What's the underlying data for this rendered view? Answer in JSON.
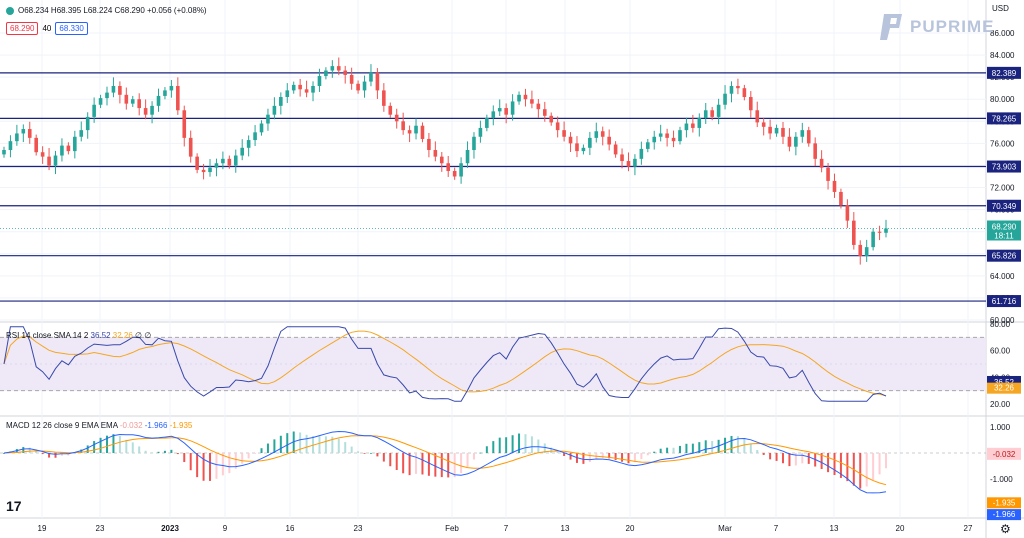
{
  "header": {
    "ohlc_text": "O68.234 H68.395 L68.224 C68.290 +0.056 (+0.08%)",
    "sell_price": "68.290",
    "spread": "40",
    "buy_price": "68.330",
    "currency": "USD"
  },
  "brand": {
    "name": "PUPRIME"
  },
  "chart_data": {
    "type": "candlestick",
    "price_axis": {
      "min": 60,
      "max": 86,
      "ticks": [
        60,
        62,
        64,
        66,
        68,
        70,
        72,
        74,
        76,
        78,
        80,
        82,
        84,
        86
      ],
      "tick_labels": [
        "60.000",
        "62.000",
        "64.000",
        "66.000",
        "68.000",
        "70.000",
        "72.000",
        "74.000",
        "76.000",
        "78.000",
        "80.000",
        "82.000",
        "84.000",
        "86.000"
      ]
    },
    "x_labels": [
      "19",
      "23",
      "2023",
      "9",
      "16",
      "23",
      "Feb",
      "7",
      "13",
      "20",
      "Mar",
      "7",
      "13",
      "20",
      "27"
    ],
    "levels": [
      {
        "value": 82.389,
        "label": "82.389"
      },
      {
        "value": 78.265,
        "label": "78.265"
      },
      {
        "value": 73.903,
        "label": "73.903"
      },
      {
        "value": 70.349,
        "label": "70.349"
      },
      {
        "value": 65.826,
        "label": "65.826"
      },
      {
        "value": 61.716,
        "label": "61.716"
      }
    ],
    "last_price": {
      "value": 68.29,
      "label": "68.290",
      "countdown": "18:11"
    },
    "close_series": [
      75.4,
      76.2,
      76.9,
      77.3,
      76.5,
      75.2,
      74.8,
      74.0,
      74.9,
      75.8,
      75.3,
      76.6,
      77.2,
      78.4,
      79.5,
      80.1,
      80.6,
      81.2,
      80.4,
      79.6,
      80.0,
      79.2,
      78.6,
      79.4,
      80.3,
      80.8,
      81.2,
      79.0,
      76.5,
      74.8,
      73.6,
      73.4,
      73.8,
      74.2,
      74.6,
      74.0,
      74.9,
      75.6,
      76.3,
      77.0,
      77.8,
      78.6,
      79.4,
      80.2,
      80.8,
      81.3,
      80.9,
      80.6,
      81.2,
      82.1,
      82.6,
      83.0,
      82.6,
      82.2,
      81.4,
      80.8,
      81.6,
      82.4,
      80.8,
      79.4,
      78.6,
      78.0,
      77.2,
      76.9,
      77.6,
      76.4,
      75.4,
      74.8,
      74.2,
      73.5,
      73.0,
      74.2,
      75.4,
      76.6,
      77.4,
      78.3,
      78.9,
      79.2,
      78.6,
      79.8,
      80.4,
      80.0,
      79.6,
      79.1,
      78.5,
      77.9,
      77.2,
      76.6,
      76.0,
      75.3,
      75.6,
      76.5,
      77.1,
      76.6,
      75.9,
      75.0,
      74.4,
      73.9,
      74.6,
      75.5,
      76.1,
      76.6,
      76.9,
      76.5,
      76.2,
      77.2,
      77.8,
      77.4,
      78.3,
      79.0,
      78.4,
      79.5,
      80.5,
      81.2,
      81.0,
      80.2,
      79.0,
      77.9,
      77.5,
      76.9,
      77.4,
      76.6,
      75.7,
      76.6,
      77.2,
      76.0,
      74.6,
      73.8,
      72.6,
      71.6,
      70.4,
      69.0,
      66.8,
      65.8,
      66.6,
      68.0,
      67.9,
      68.29
    ],
    "rsi": {
      "label": "RSI 14 close SMA 14 2",
      "rsi_value": "36.52",
      "sma_value": "32.26",
      "extra": "∅ ∅",
      "levels": [
        70,
        30
      ],
      "axis_ticks": [
        20,
        40,
        60,
        80
      ],
      "axis_labels": [
        "20.00",
        "40.00",
        "60.00",
        "80.00"
      ]
    },
    "macd": {
      "label": "MACD 12 26 close 9 EMA EMA",
      "hist_value": "-0.032",
      "macd_value": "-1.966",
      "signal_value": "-1.935",
      "axis_ticks": [
        1,
        0,
        -1
      ],
      "axis_labels": [
        "1.000",
        "0.000",
        "-1.000"
      ]
    }
  },
  "colors": {
    "up": "#26a69a",
    "down": "#ef5350",
    "level_line": "#1a237e",
    "level_box": "#1a237e",
    "rsi": "#3949ab",
    "rsi_sma": "#f5a623",
    "macd": "#2962ff",
    "signal": "#ff9800",
    "rsi_band": "#ede7f6"
  }
}
